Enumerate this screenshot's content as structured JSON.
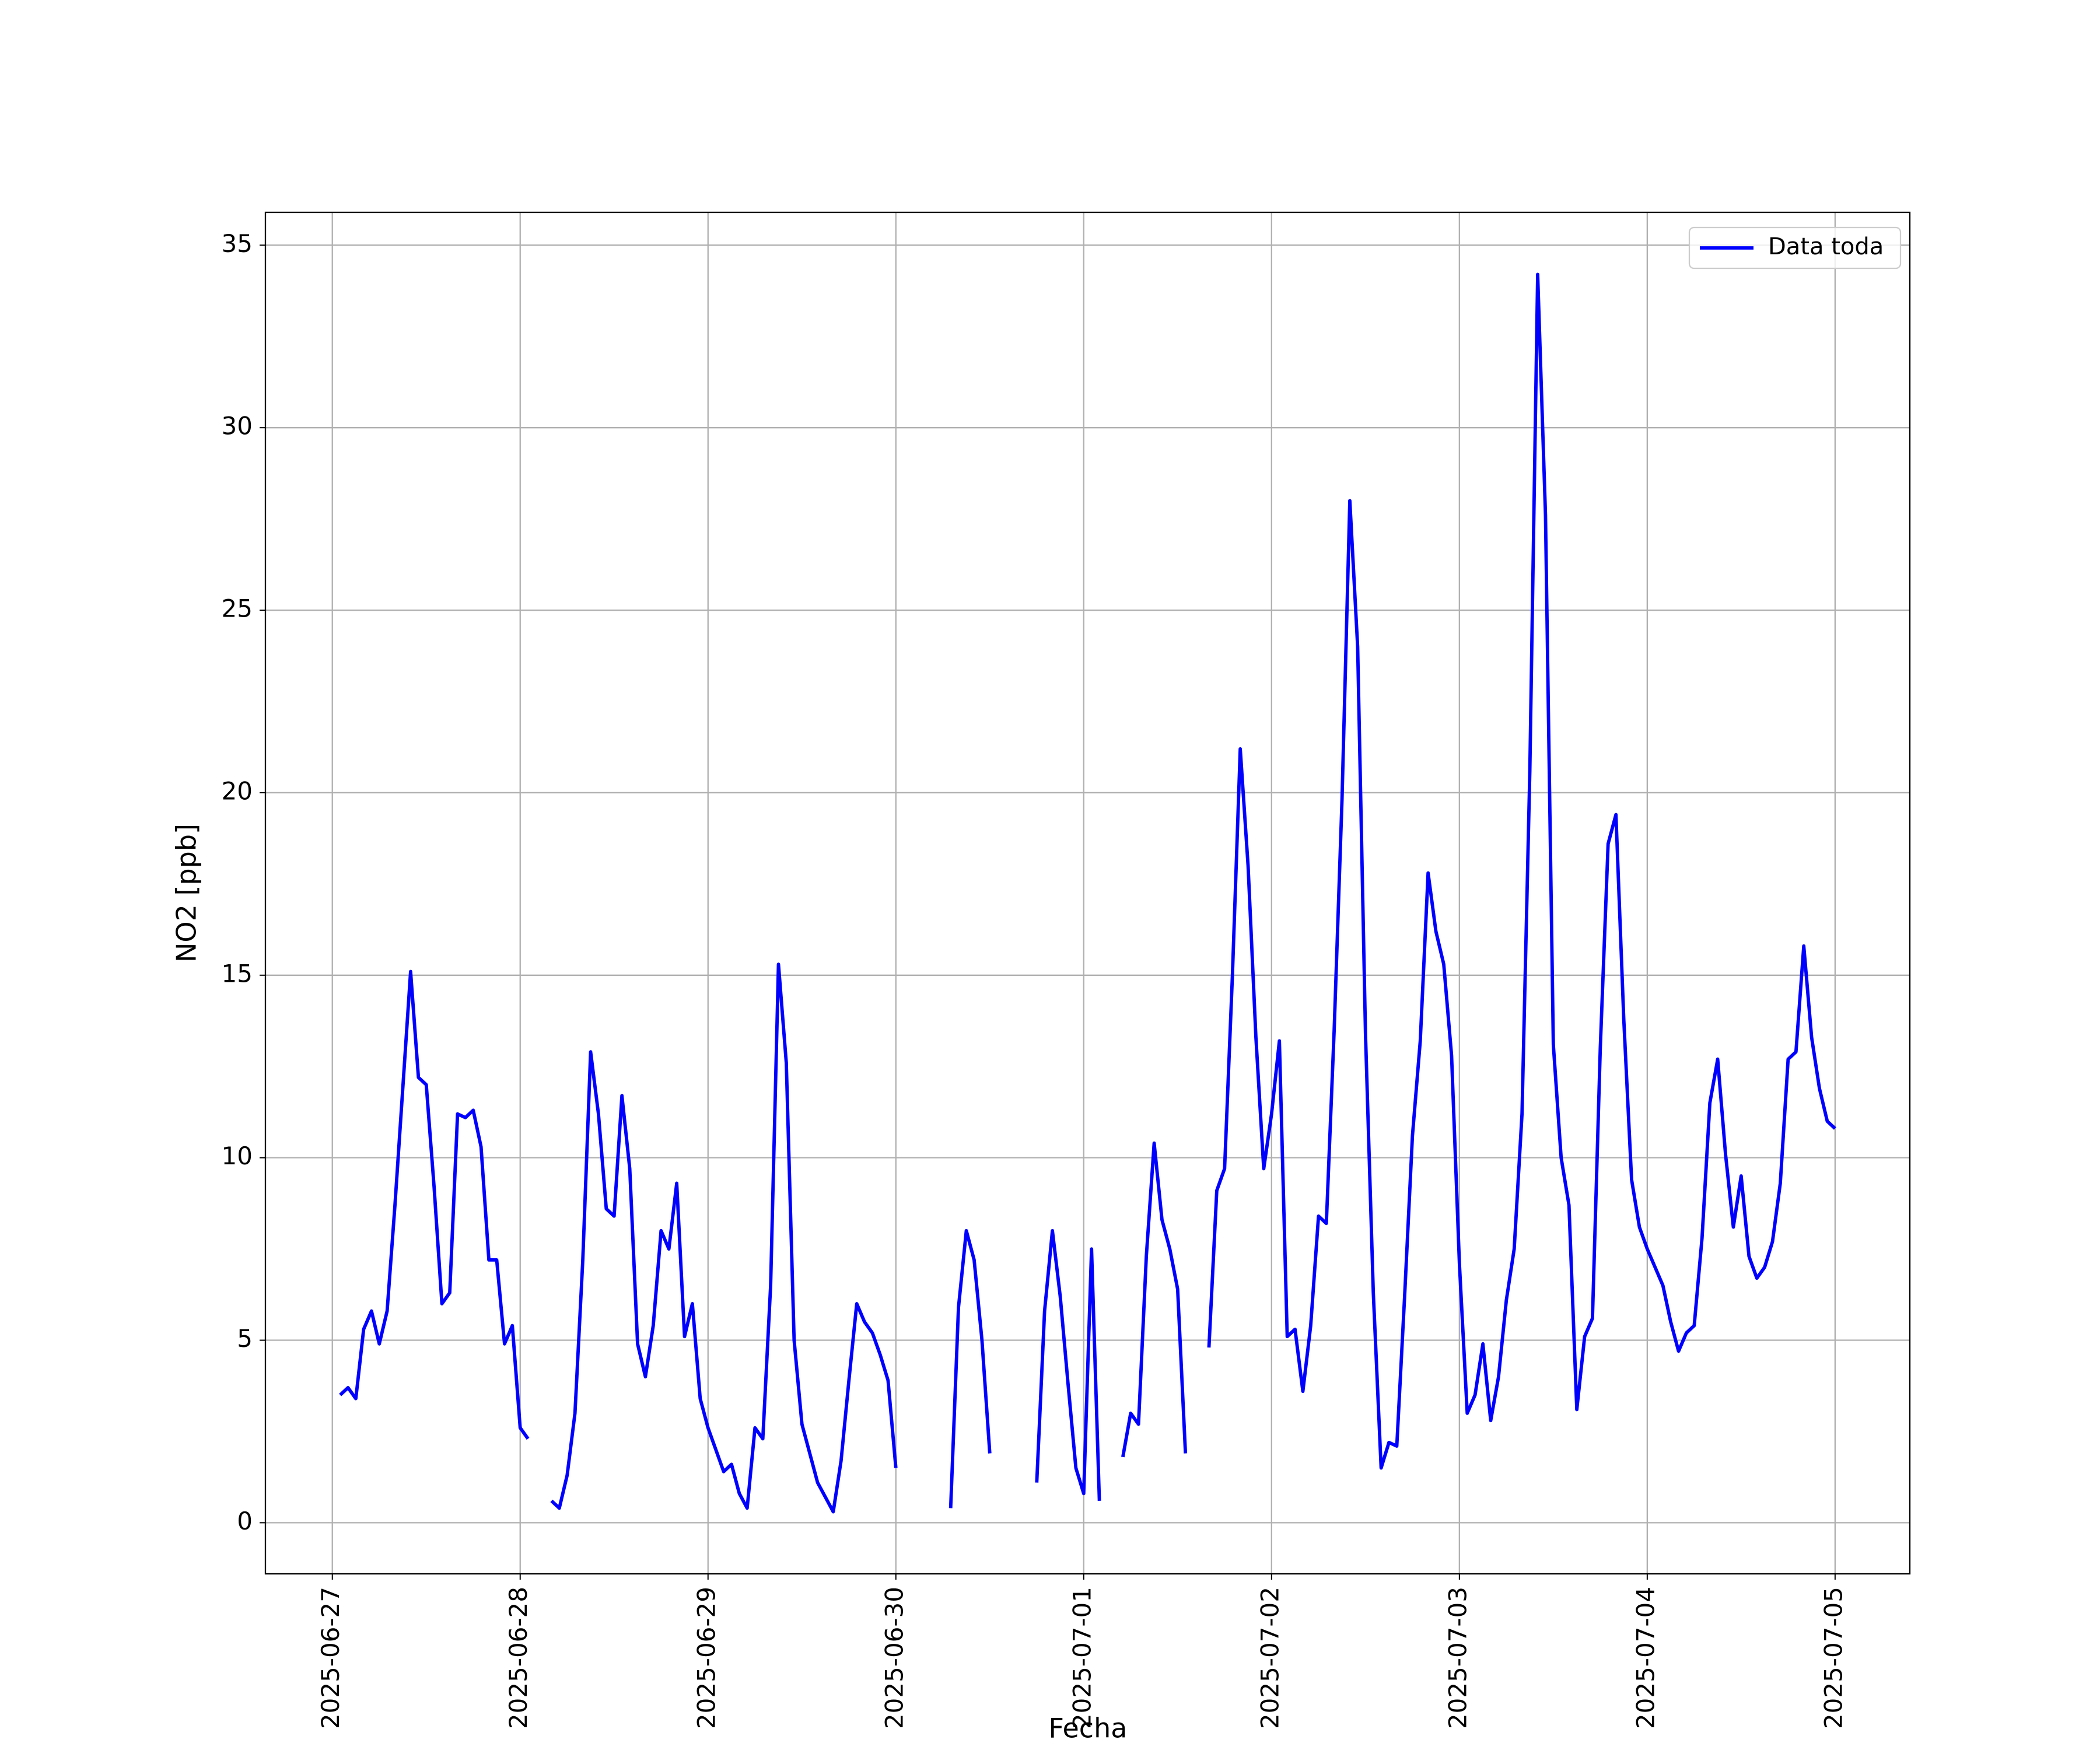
{
  "chart_data": {
    "type": "line",
    "xlabel": "Fecha",
    "ylabel": "NO2 [ppb]",
    "x": [
      "2025-06-27 01:00",
      "2025-06-27 02:00",
      "2025-06-27 03:00",
      "2025-06-27 04:00",
      "2025-06-27 05:00",
      "2025-06-27 06:00",
      "2025-06-27 07:00",
      "2025-06-27 08:00",
      "2025-06-27 09:00",
      "2025-06-27 10:00",
      "2025-06-27 11:00",
      "2025-06-27 12:00",
      "2025-06-27 13:00",
      "2025-06-27 14:00",
      "2025-06-27 15:00",
      "2025-06-27 16:00",
      "2025-06-27 17:00",
      "2025-06-27 18:00",
      "2025-06-27 19:00",
      "2025-06-27 20:00",
      "2025-06-27 21:00",
      "2025-06-27 22:00",
      "2025-06-27 23:00",
      "2025-06-28 00:00",
      "2025-06-28 01:00",
      "2025-06-28 02:00",
      "2025-06-28 03:00",
      "2025-06-28 04:00",
      "2025-06-28 05:00",
      "2025-06-28 06:00",
      "2025-06-28 07:00",
      "2025-06-28 08:00",
      "2025-06-28 09:00",
      "2025-06-28 10:00",
      "2025-06-28 11:00",
      "2025-06-28 12:00",
      "2025-06-28 13:00",
      "2025-06-28 14:00",
      "2025-06-28 15:00",
      "2025-06-28 16:00",
      "2025-06-28 17:00",
      "2025-06-28 18:00",
      "2025-06-28 19:00",
      "2025-06-28 20:00",
      "2025-06-28 21:00",
      "2025-06-28 22:00",
      "2025-06-28 23:00",
      "2025-06-29 00:00",
      "2025-06-29 01:00",
      "2025-06-29 02:00",
      "2025-06-29 03:00",
      "2025-06-29 04:00",
      "2025-06-29 05:00",
      "2025-06-29 06:00",
      "2025-06-29 07:00",
      "2025-06-29 08:00",
      "2025-06-29 09:00",
      "2025-06-29 10:00",
      "2025-06-29 11:00",
      "2025-06-29 12:00",
      "2025-06-29 13:00",
      "2025-06-29 14:00",
      "2025-06-29 15:00",
      "2025-06-29 16:00",
      "2025-06-29 17:00",
      "2025-06-29 18:00",
      "2025-06-29 19:00",
      "2025-06-29 20:00",
      "2025-06-29 21:00",
      "2025-06-29 22:00",
      "2025-06-29 23:00",
      "2025-06-30 00:00",
      "2025-06-30 01:00",
      "2025-06-30 02:00",
      "2025-06-30 03:00",
      "2025-06-30 04:00",
      "2025-06-30 05:00",
      "2025-06-30 06:00",
      "2025-06-30 07:00",
      "2025-06-30 08:00",
      "2025-06-30 09:00",
      "2025-06-30 10:00",
      "2025-06-30 11:00",
      "2025-06-30 12:00",
      "2025-06-30 13:00",
      "2025-06-30 14:00",
      "2025-06-30 15:00",
      "2025-06-30 16:00",
      "2025-06-30 17:00",
      "2025-06-30 18:00",
      "2025-06-30 19:00",
      "2025-06-30 20:00",
      "2025-06-30 21:00",
      "2025-06-30 22:00",
      "2025-06-30 23:00",
      "2025-07-01 00:00",
      "2025-07-01 01:00",
      "2025-07-01 02:00",
      "2025-07-01 03:00",
      "2025-07-01 04:00",
      "2025-07-01 05:00",
      "2025-07-01 06:00",
      "2025-07-01 07:00",
      "2025-07-01 08:00",
      "2025-07-01 09:00",
      "2025-07-01 10:00",
      "2025-07-01 11:00",
      "2025-07-01 12:00",
      "2025-07-01 13:00",
      "2025-07-01 14:00",
      "2025-07-01 15:00",
      "2025-07-01 16:00",
      "2025-07-01 17:00",
      "2025-07-01 18:00",
      "2025-07-01 19:00",
      "2025-07-01 20:00",
      "2025-07-01 21:00",
      "2025-07-01 22:00",
      "2025-07-01 23:00",
      "2025-07-02 00:00",
      "2025-07-02 01:00",
      "2025-07-02 02:00",
      "2025-07-02 03:00",
      "2025-07-02 04:00",
      "2025-07-02 05:00",
      "2025-07-02 06:00",
      "2025-07-02 07:00",
      "2025-07-02 08:00",
      "2025-07-02 09:00",
      "2025-07-02 10:00",
      "2025-07-02 11:00",
      "2025-07-02 12:00",
      "2025-07-02 13:00",
      "2025-07-02 14:00",
      "2025-07-02 15:00",
      "2025-07-02 16:00",
      "2025-07-02 17:00",
      "2025-07-02 18:00",
      "2025-07-02 19:00",
      "2025-07-02 20:00",
      "2025-07-02 21:00",
      "2025-07-02 22:00",
      "2025-07-02 23:00",
      "2025-07-03 00:00",
      "2025-07-03 01:00",
      "2025-07-03 02:00",
      "2025-07-03 03:00",
      "2025-07-03 04:00",
      "2025-07-03 05:00",
      "2025-07-03 06:00",
      "2025-07-03 07:00",
      "2025-07-03 08:00",
      "2025-07-03 09:00",
      "2025-07-03 10:00",
      "2025-07-03 11:00",
      "2025-07-03 12:00",
      "2025-07-03 13:00",
      "2025-07-03 14:00",
      "2025-07-03 15:00",
      "2025-07-03 16:00",
      "2025-07-03 17:00",
      "2025-07-03 18:00",
      "2025-07-03 19:00",
      "2025-07-03 20:00",
      "2025-07-03 21:00",
      "2025-07-03 22:00",
      "2025-07-03 23:00",
      "2025-07-04 00:00",
      "2025-07-04 01:00",
      "2025-07-04 02:00",
      "2025-07-04 03:00",
      "2025-07-04 04:00",
      "2025-07-04 05:00",
      "2025-07-04 06:00",
      "2025-07-04 07:00",
      "2025-07-04 08:00",
      "2025-07-04 09:00",
      "2025-07-04 10:00",
      "2025-07-04 11:00",
      "2025-07-04 12:00",
      "2025-07-04 13:00",
      "2025-07-04 14:00",
      "2025-07-04 15:00",
      "2025-07-04 16:00",
      "2025-07-04 17:00",
      "2025-07-04 18:00",
      "2025-07-04 19:00",
      "2025-07-04 20:00",
      "2025-07-04 21:00",
      "2025-07-04 22:00",
      "2025-07-04 23:00",
      "2025-07-05 00:00"
    ],
    "series": [
      {
        "name": "Data toda",
        "color": "#0000ff",
        "values": [
          3.5,
          3.7,
          3.4,
          5.3,
          5.8,
          4.9,
          5.8,
          8.7,
          11.9,
          15.1,
          12.2,
          12.0,
          9.2,
          6.0,
          6.3,
          11.2,
          11.1,
          11.3,
          10.3,
          7.2,
          7.2,
          4.9,
          5.4,
          2.6,
          2.3,
          null,
          null,
          0.6,
          0.4,
          1.3,
          3.0,
          7.2,
          12.9,
          11.2,
          8.6,
          8.4,
          11.7,
          9.7,
          4.9,
          4.0,
          5.4,
          8.0,
          7.5,
          9.3,
          5.1,
          6.0,
          3.4,
          2.6,
          2.0,
          1.4,
          1.6,
          0.8,
          0.4,
          2.6,
          2.3,
          6.5,
          15.3,
          12.6,
          5.0,
          2.7,
          1.9,
          1.1,
          0.7,
          0.3,
          1.7,
          3.9,
          6.0,
          5.5,
          5.2,
          4.6,
          3.9,
          1.5,
          null,
          null,
          null,
          null,
          null,
          null,
          0.4,
          5.9,
          8.0,
          7.2,
          5.0,
          1.9,
          null,
          null,
          null,
          null,
          null,
          1.1,
          5.8,
          8.0,
          6.2,
          3.8,
          1.5,
          0.8,
          7.5,
          0.6,
          null,
          null,
          1.8,
          3.0,
          2.7,
          7.3,
          10.4,
          8.3,
          7.5,
          6.4,
          1.9,
          null,
          null,
          4.8,
          9.1,
          9.7,
          15.0,
          21.2,
          18.0,
          13.3,
          9.7,
          11.2,
          13.2,
          5.1,
          5.3,
          3.6,
          5.4,
          8.4,
          8.2,
          13.5,
          19.8,
          28.0,
          24.0,
          13.4,
          6.3,
          1.5,
          2.2,
          2.1,
          6.2,
          10.6,
          13.2,
          17.8,
          16.2,
          15.3,
          12.8,
          7.1,
          3.0,
          3.5,
          4.9,
          2.8,
          4.0,
          6.1,
          7.5,
          11.2,
          20.6,
          34.2,
          27.6,
          13.1,
          10.0,
          8.7,
          3.1,
          5.1,
          5.6,
          13.0,
          18.6,
          19.4,
          13.8,
          9.4,
          8.1,
          7.5,
          7.0,
          6.5,
          5.5,
          4.7,
          5.2,
          5.4,
          7.8,
          11.5,
          12.7,
          10.1,
          8.1,
          9.5,
          7.3,
          6.7,
          7.0,
          7.7,
          9.3,
          12.7,
          12.9,
          15.8,
          13.3,
          11.9,
          11.0,
          10.8
        ]
      }
    ],
    "xlim": [
      "2025-06-26 15:27",
      "2025-07-05 09:33"
    ],
    "xticks": [
      "2025-06-27",
      "2025-06-28",
      "2025-06-29",
      "2025-06-30",
      "2025-07-01",
      "2025-07-02",
      "2025-07-03",
      "2025-07-04",
      "2025-07-05"
    ],
    "ylim": [
      -1.4,
      35.9
    ],
    "yticks": [
      0,
      5,
      10,
      15,
      20,
      25,
      30,
      35
    ],
    "grid": true,
    "legend": "upper right"
  }
}
